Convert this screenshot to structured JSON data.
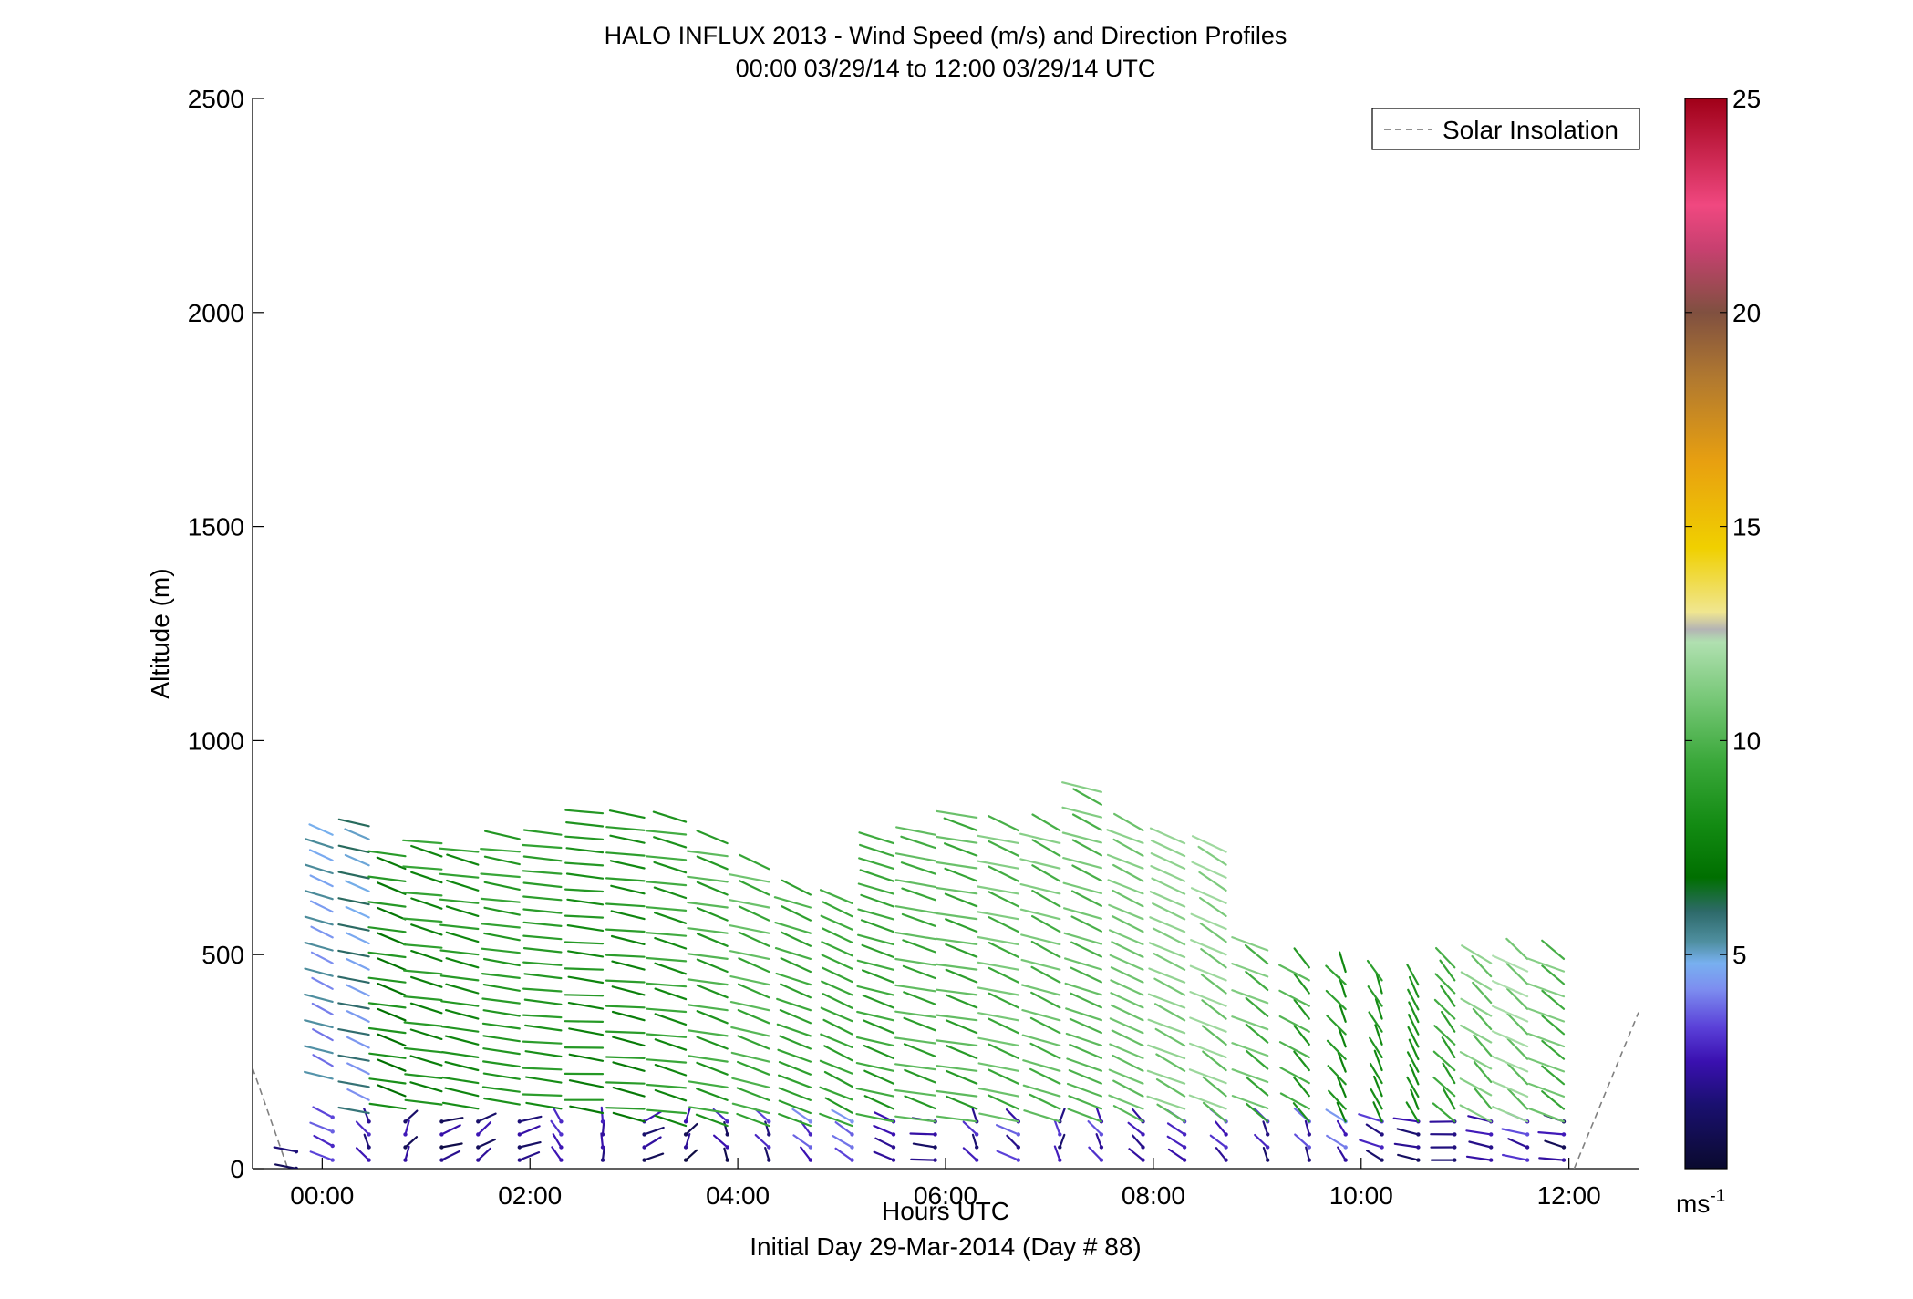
{
  "chart_data": {
    "type": "wind_barb_profile",
    "title": "HALO INFLUX 2013 - Wind Speed (m/s) and Direction Profiles",
    "subtitle": "00:00 03/29/14 to 12:00 03/29/14  UTC",
    "xlabel": "Hours UTC",
    "xlabel2": "Initial Day 29-Mar-2014 (Day # 88)",
    "ylabel": "Altitude (m)",
    "xlim": [
      -0.67,
      12.67
    ],
    "ylim": [
      0,
      2500
    ],
    "x_ticks": [
      {
        "value": 0,
        "label": "00:00"
      },
      {
        "value": 2,
        "label": "02:00"
      },
      {
        "value": 4,
        "label": "04:00"
      },
      {
        "value": 6,
        "label": "06:00"
      },
      {
        "value": 8,
        "label": "08:00"
      },
      {
        "value": 10,
        "label": "10:00"
      },
      {
        "value": 12,
        "label": "12:00"
      }
    ],
    "y_ticks": [
      {
        "value": 0,
        "label": "0"
      },
      {
        "value": 500,
        "label": "500"
      },
      {
        "value": 1000,
        "label": "1000"
      },
      {
        "value": 1500,
        "label": "1500"
      },
      {
        "value": 2000,
        "label": "2000"
      },
      {
        "value": 2500,
        "label": "2500"
      }
    ],
    "legend": {
      "entries": [
        "Solar Insolation"
      ],
      "placement": "top-right",
      "line_style": "dashed",
      "color": "#808080"
    },
    "colorbar": {
      "range": [
        0,
        25
      ],
      "ticks": [
        {
          "value": 5,
          "label": "5"
        },
        {
          "value": 10,
          "label": "10"
        },
        {
          "value": 15,
          "label": "15"
        },
        {
          "value": 20,
          "label": "20"
        },
        {
          "value": 25,
          "label": "25"
        }
      ],
      "unit_label": "ms",
      "unit_exp": "-1",
      "stops": [
        {
          "v": 0,
          "color": "#0a0a2e"
        },
        {
          "v": 1.5,
          "color": "#1a1070"
        },
        {
          "v": 2.5,
          "color": "#3a10b0"
        },
        {
          "v": 3.3,
          "color": "#5a40d8"
        },
        {
          "v": 4.2,
          "color": "#7d8ef0"
        },
        {
          "v": 4.8,
          "color": "#78b0f0"
        },
        {
          "v": 5.3,
          "color": "#4f8fa0"
        },
        {
          "v": 6.0,
          "color": "#2e6a6a"
        },
        {
          "v": 6.8,
          "color": "#006f00"
        },
        {
          "v": 8.0,
          "color": "#128a12"
        },
        {
          "v": 9.5,
          "color": "#3aa83a"
        },
        {
          "v": 11.0,
          "color": "#78c878"
        },
        {
          "v": 12.3,
          "color": "#b0e0b0"
        },
        {
          "v": 12.6,
          "color": "#b4b4b4"
        },
        {
          "v": 13.0,
          "color": "#f0e690"
        },
        {
          "v": 14.5,
          "color": "#f0d000"
        },
        {
          "v": 16.5,
          "color": "#e8a010"
        },
        {
          "v": 18.5,
          "color": "#b07830"
        },
        {
          "v": 20.0,
          "color": "#805040"
        },
        {
          "v": 21.5,
          "color": "#c84070"
        },
        {
          "v": 22.5,
          "color": "#f04880"
        },
        {
          "v": 25.0,
          "color": "#a00018"
        }
      ]
    },
    "solar_insolation": [
      {
        "x": [
          -0.67,
          -0.33
        ],
        "y": [
          235,
          0
        ]
      },
      {
        "x": [
          12.05,
          12.67
        ],
        "y": [
          0,
          365
        ]
      }
    ],
    "profiles": [
      {
        "t": -0.25,
        "segments": [
          {
            "z_min": 0,
            "z_max": 40,
            "speed": 1.0,
            "dir": 250
          }
        ]
      },
      {
        "t": 0.1,
        "segments": [
          {
            "z_min": 20,
            "z_max": 120,
            "speed": 3.0,
            "dir": 230
          },
          {
            "z_min": 210,
            "z_max": 780,
            "speed": 4.5,
            "dir": 235
          }
        ]
      },
      {
        "t": 0.45,
        "segments": [
          {
            "z_min": 20,
            "z_max": 110,
            "speed": 2.0,
            "dir": 200
          },
          {
            "z_min": 130,
            "z_max": 800,
            "speed": 5.0,
            "dir": 240
          }
        ]
      },
      {
        "t": 0.8,
        "segments": [
          {
            "z_min": 20,
            "z_max": 110,
            "speed": 1.5,
            "dir": 160
          },
          {
            "z_min": 140,
            "z_max": 730,
            "speed": 7.5,
            "dir": 245
          }
        ]
      },
      {
        "t": 1.15,
        "segments": [
          {
            "z_min": 20,
            "z_max": 110,
            "speed": 1.2,
            "dir": 120
          },
          {
            "z_min": 150,
            "z_max": 760,
            "speed": 8.0,
            "dir": 250
          }
        ]
      },
      {
        "t": 1.5,
        "segments": [
          {
            "z_min": 20,
            "z_max": 110,
            "speed": 1.5,
            "dir": 140
          },
          {
            "z_min": 140,
            "z_max": 740,
            "speed": 8.0,
            "dir": 250
          }
        ]
      },
      {
        "t": 1.9,
        "segments": [
          {
            "z_min": 20,
            "z_max": 110,
            "speed": 1.5,
            "dir": 120
          },
          {
            "z_min": 150,
            "z_max": 770,
            "speed": 8.5,
            "dir": 255
          }
        ]
      },
      {
        "t": 2.3,
        "segments": [
          {
            "z_min": 20,
            "z_max": 110,
            "speed": 2.5,
            "dir": 200
          },
          {
            "z_min": 140,
            "z_max": 780,
            "speed": 8.5,
            "dir": 260
          }
        ]
      },
      {
        "t": 2.7,
        "segments": [
          {
            "z_min": 20,
            "z_max": 110,
            "speed": 2.0,
            "dir": 180
          },
          {
            "z_min": 130,
            "z_max": 830,
            "speed": 8.0,
            "dir": 260
          }
        ]
      },
      {
        "t": 3.1,
        "segments": [
          {
            "z_min": 20,
            "z_max": 110,
            "speed": 1.5,
            "dir": 130
          },
          {
            "z_min": 110,
            "z_max": 820,
            "speed": 8.0,
            "dir": 255
          }
        ]
      },
      {
        "t": 3.5,
        "segments": [
          {
            "z_min": 20,
            "z_max": 110,
            "speed": 1.2,
            "dir": 160
          },
          {
            "z_min": 100,
            "z_max": 810,
            "speed": 8.5,
            "dir": 250
          }
        ]
      },
      {
        "t": 3.9,
        "segments": [
          {
            "z_min": 20,
            "z_max": 110,
            "speed": 1.5,
            "dir": 200
          },
          {
            "z_min": 100,
            "z_max": 760,
            "speed": 9.0,
            "dir": 245
          }
        ]
      },
      {
        "t": 4.3,
        "segments": [
          {
            "z_min": 20,
            "z_max": 110,
            "speed": 2.0,
            "dir": 200
          },
          {
            "z_min": 100,
            "z_max": 700,
            "speed": 9.5,
            "dir": 240
          }
        ]
      },
      {
        "t": 4.7,
        "segments": [
          {
            "z_min": 20,
            "z_max": 110,
            "speed": 3.0,
            "dir": 210
          },
          {
            "z_min": 100,
            "z_max": 640,
            "speed": 9.0,
            "dir": 235
          }
        ]
      },
      {
        "t": 5.1,
        "segments": [
          {
            "z_min": 20,
            "z_max": 110,
            "speed": 3.5,
            "dir": 220
          },
          {
            "z_min": 100,
            "z_max": 620,
            "speed": 9.0,
            "dir": 230
          }
        ]
      },
      {
        "t": 5.5,
        "segments": [
          {
            "z_min": 20,
            "z_max": 110,
            "speed": 2.0,
            "dir": 230
          },
          {
            "z_min": 110,
            "z_max": 760,
            "speed": 9.0,
            "dir": 240
          }
        ]
      },
      {
        "t": 5.9,
        "segments": [
          {
            "z_min": 20,
            "z_max": 110,
            "speed": 1.5,
            "dir": 260
          },
          {
            "z_min": 110,
            "z_max": 780,
            "speed": 9.5,
            "dir": 245
          }
        ]
      },
      {
        "t": 6.3,
        "segments": [
          {
            "z_min": 20,
            "z_max": 110,
            "speed": 2.0,
            "dir": 200
          },
          {
            "z_min": 110,
            "z_max": 820,
            "speed": 9.5,
            "dir": 245
          }
        ]
      },
      {
        "t": 6.7,
        "segments": [
          {
            "z_min": 20,
            "z_max": 110,
            "speed": 2.5,
            "dir": 220
          },
          {
            "z_min": 110,
            "z_max": 790,
            "speed": 10.0,
            "dir": 240
          }
        ]
      },
      {
        "t": 7.1,
        "segments": [
          {
            "z_min": 20,
            "z_max": 110,
            "speed": 2.0,
            "dir": 180
          },
          {
            "z_min": 110,
            "z_max": 790,
            "speed": 10.0,
            "dir": 235
          }
        ]
      },
      {
        "t": 7.5,
        "segments": [
          {
            "z_min": 20,
            "z_max": 110,
            "speed": 2.5,
            "dir": 200
          },
          {
            "z_min": 110,
            "z_max": 880,
            "speed": 10.0,
            "dir": 235
          }
        ]
      },
      {
        "t": 7.9,
        "segments": [
          {
            "z_min": 20,
            "z_max": 110,
            "speed": 2.0,
            "dir": 210
          },
          {
            "z_min": 110,
            "z_max": 790,
            "speed": 10.5,
            "dir": 230
          }
        ]
      },
      {
        "t": 8.3,
        "segments": [
          {
            "z_min": 20,
            "z_max": 110,
            "speed": 2.5,
            "dir": 220
          },
          {
            "z_min": 110,
            "z_max": 760,
            "speed": 11.0,
            "dir": 230
          }
        ]
      },
      {
        "t": 8.7,
        "segments": [
          {
            "z_min": 20,
            "z_max": 110,
            "speed": 2.5,
            "dir": 210
          },
          {
            "z_min": 110,
            "z_max": 740,
            "speed": 11.0,
            "dir": 225
          }
        ]
      },
      {
        "t": 9.1,
        "segments": [
          {
            "z_min": 20,
            "z_max": 110,
            "speed": 2.0,
            "dir": 200
          },
          {
            "z_min": 110,
            "z_max": 510,
            "speed": 10.0,
            "dir": 225
          }
        ]
      },
      {
        "t": 9.5,
        "segments": [
          {
            "z_min": 20,
            "z_max": 110,
            "speed": 2.5,
            "dir": 200
          },
          {
            "z_min": 110,
            "z_max": 470,
            "speed": 9.0,
            "dir": 215
          }
        ]
      },
      {
        "t": 9.85,
        "segments": [
          {
            "z_min": 20,
            "z_max": 110,
            "speed": 3.0,
            "dir": 210
          },
          {
            "z_min": 110,
            "z_max": 460,
            "speed": 8.0,
            "dir": 200
          }
        ]
      },
      {
        "t": 10.2,
        "segments": [
          {
            "z_min": 20,
            "z_max": 110,
            "speed": 2.0,
            "dir": 230
          },
          {
            "z_min": 110,
            "z_max": 440,
            "speed": 8.0,
            "dir": 195
          }
        ]
      },
      {
        "t": 10.55,
        "segments": [
          {
            "z_min": 20,
            "z_max": 110,
            "speed": 1.5,
            "dir": 250
          },
          {
            "z_min": 110,
            "z_max": 430,
            "speed": 8.0,
            "dir": 195
          }
        ]
      },
      {
        "t": 10.9,
        "segments": [
          {
            "z_min": 20,
            "z_max": 110,
            "speed": 1.5,
            "dir": 270
          },
          {
            "z_min": 110,
            "z_max": 470,
            "speed": 9.0,
            "dir": 205
          }
        ]
      },
      {
        "t": 11.25,
        "segments": [
          {
            "z_min": 20,
            "z_max": 110,
            "speed": 2.0,
            "dir": 250
          },
          {
            "z_min": 110,
            "z_max": 480,
            "speed": 10.5,
            "dir": 215
          }
        ]
      },
      {
        "t": 11.6,
        "segments": [
          {
            "z_min": 20,
            "z_max": 110,
            "speed": 2.5,
            "dir": 240
          },
          {
            "z_min": 110,
            "z_max": 490,
            "speed": 11.0,
            "dir": 220
          }
        ]
      },
      {
        "t": 11.95,
        "segments": [
          {
            "z_min": 20,
            "z_max": 110,
            "speed": 1.5,
            "dir": 250
          },
          {
            "z_min": 110,
            "z_max": 490,
            "speed": 10.0,
            "dir": 225
          }
        ]
      }
    ]
  }
}
